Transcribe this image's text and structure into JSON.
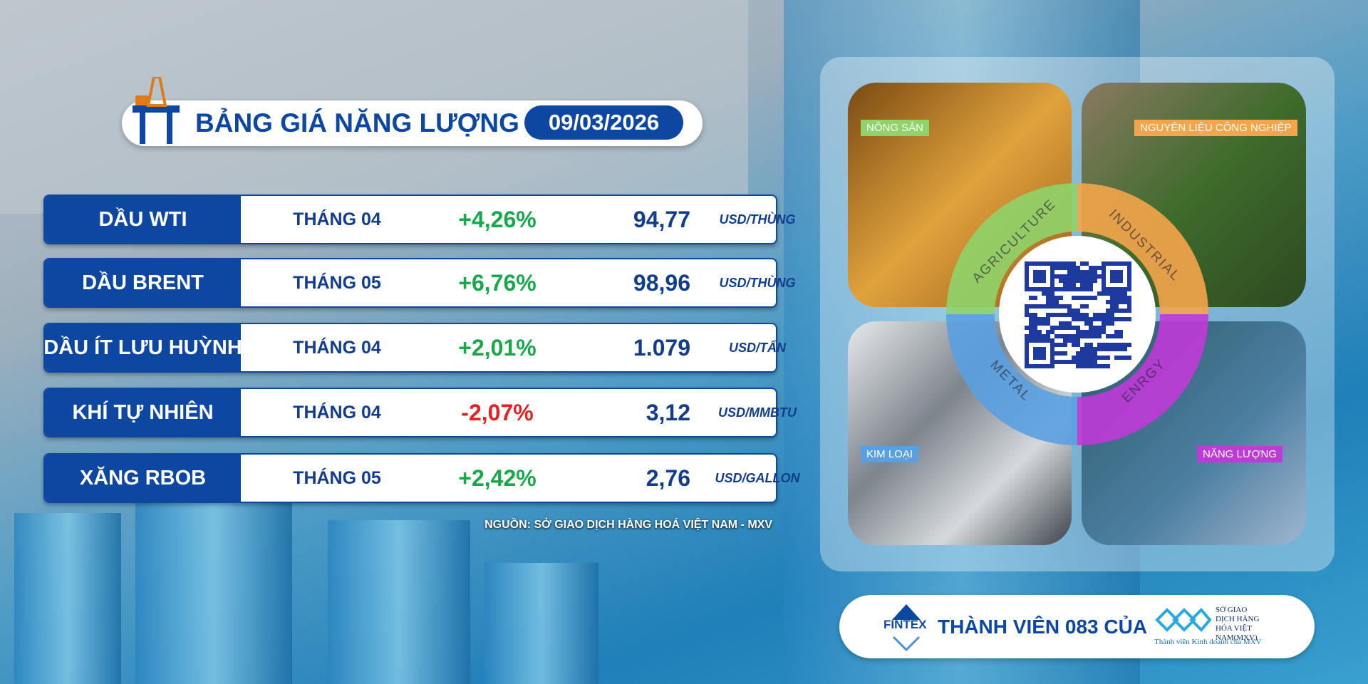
{
  "header": {
    "title": "BẢNG GIÁ NĂNG LƯỢNG",
    "date": "09/03/2026"
  },
  "table": {
    "rows": [
      [
        "DẦU WTI",
        "THÁNG 04",
        "+4,26%",
        "94,77",
        "USD/THÙNG"
      ],
      [
        "DẦU BRENT",
        "THÁNG 05",
        "+6,76%",
        "98,96",
        "USD/THÙNG"
      ],
      [
        "DẦU ÍT LƯU HUỲNH",
        "THÁNG 04",
        "+2,01%",
        "1.079",
        "USD/TẤN"
      ],
      [
        "KHÍ TỰ NHIÊN",
        "THÁNG 04",
        "-2,07%",
        "3,12",
        "USD/MMBTU"
      ],
      [
        "XĂNG RBOB",
        "THÁNG 05",
        "+2,42%",
        "2,76",
        "USD/GALLON"
      ]
    ]
  },
  "source": "NGUỒN: SỞ GIAO DỊCH HÀNG HOÁ VIỆT NAM - MXV",
  "sectors": {
    "tiles": [
      "NÔNG SẢN",
      "NGUYÊN LIỆU CÔNG NGHIỆP",
      "KIM LOẠI",
      "NĂNG LƯỢNG"
    ],
    "ring": [
      "AGRICULTURE",
      "INDUSTRIAL",
      "METAL",
      "ENRGY"
    ]
  },
  "footer": {
    "brand": "FINTEX",
    "text": "THÀNH VIÊN 083 CỦA",
    "exchange": "SỞ GIAO DỊCH HÀNG HÓA VIỆT NAM(MXV)",
    "tagline": "Thành viên Kinh doanh của MXV"
  }
}
